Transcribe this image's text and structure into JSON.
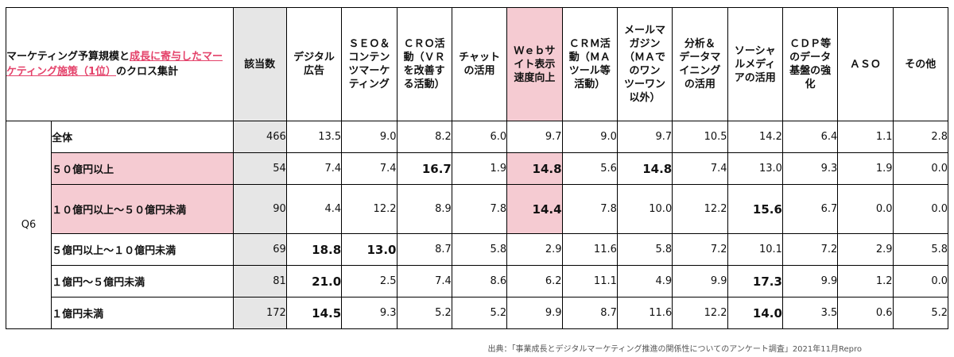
{
  "title": {
    "part1": "マーケティング予算規模と",
    "highlight": "成長に寄与したマーケティング施策（1位）",
    "part2": "のクロス集計"
  },
  "headers": [
    "該当数",
    "デジタル\n広告",
    "ＳＥＯ＆\nコンテン\nツマーケ\nティング",
    "ＣＲＯ活\n動（ＶＲ\nを改善す\nる活動）",
    "チャット\nの活用",
    "Ｗｅｂサ\nイト表示\n速度向上",
    "ＣＲＭ活\n動（ＭＡ\nツール等\n活動）",
    "メールマ\nガジン\n（ＭＡで\nのワン\nツーワン\n以外）",
    "分析＆\nデータマ\nイニング\nの活用",
    "ソーシャ\nルメディ\nアの活用",
    "ＣＤＰ等\nのデータ\n基盤の強\n化",
    "ＡＳＯ",
    "その他"
  ],
  "question_label": "Q6",
  "rows": [
    {
      "label": "全体",
      "values": [
        "466",
        "13.5",
        "9.0",
        "8.2",
        "6.0",
        "9.7",
        "9.0",
        "9.7",
        "10.5",
        "14.2",
        "6.4",
        "1.1",
        "2.8"
      ]
    },
    {
      "label": "５０億円以上",
      "values": [
        "54",
        "7.4",
        "7.4",
        "16.7",
        "1.9",
        "14.8",
        "5.6",
        "14.8",
        "7.4",
        "13.0",
        "9.3",
        "1.9",
        "0.0"
      ]
    },
    {
      "label": "１０億円以上～５０億円未満",
      "values": [
        "90",
        "4.4",
        "12.2",
        "8.9",
        "7.8",
        "14.4",
        "7.8",
        "10.0",
        "12.2",
        "15.6",
        "6.7",
        "0.0",
        "0.0"
      ]
    },
    {
      "label": "５億円以上～１０億円未満",
      "values": [
        "69",
        "18.8",
        "13.0",
        "8.7",
        "5.8",
        "2.9",
        "11.6",
        "5.8",
        "7.2",
        "10.1",
        "7.2",
        "2.9",
        "5.8"
      ]
    },
    {
      "label": "１億円～５億円未満",
      "values": [
        "81",
        "21.0",
        "2.5",
        "7.4",
        "8.6",
        "6.2",
        "11.1",
        "4.9",
        "9.9",
        "17.3",
        "9.9",
        "1.2",
        "0.0"
      ]
    },
    {
      "label": "１億円未満",
      "values": [
        "172",
        "14.5",
        "9.3",
        "5.2",
        "5.2",
        "9.9",
        "8.7",
        "11.6",
        "12.2",
        "14.0",
        "3.5",
        "0.6",
        "5.2"
      ]
    }
  ],
  "source": "出典：「事業成長とデジタルマーケティング推進の関係性についてのアンケート調査」2021年11月Repro"
}
